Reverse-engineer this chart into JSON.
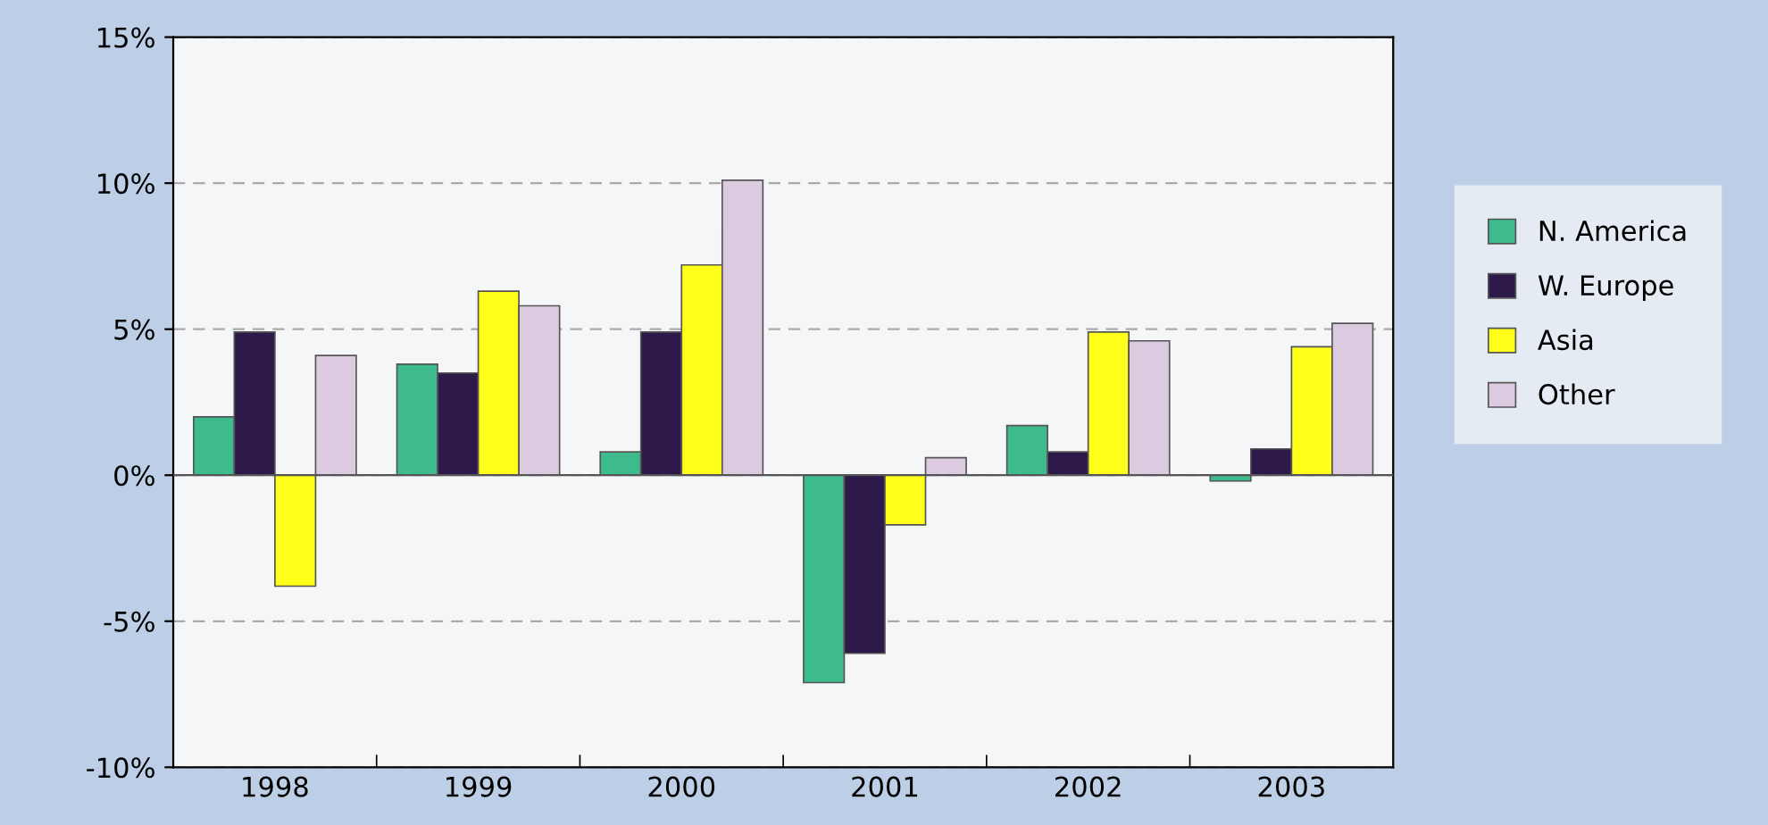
{
  "chart_data": {
    "type": "bar",
    "categories": [
      "1998",
      "1999",
      "2000",
      "2001",
      "2002",
      "2003"
    ],
    "series": [
      {
        "name": "N. America",
        "color": "#3dbb8c",
        "values": [
          2.0,
          3.8,
          0.8,
          -7.1,
          1.7,
          -0.2
        ]
      },
      {
        "name": "W. Europe",
        "color": "#2e1a4a",
        "values": [
          4.9,
          3.5,
          4.9,
          -6.1,
          0.8,
          0.9
        ]
      },
      {
        "name": "Asia",
        "color": "#ffff1a",
        "values": [
          -3.8,
          6.3,
          7.2,
          -1.7,
          4.9,
          4.4
        ]
      },
      {
        "name": "Other",
        "color": "#dccbe0",
        "values": [
          4.1,
          5.8,
          10.1,
          0.6,
          4.6,
          5.2
        ]
      }
    ],
    "ylim": [
      -10,
      15
    ],
    "yticks": [
      {
        "value": -10,
        "label": "-10%"
      },
      {
        "value": -5,
        "label": "-5%"
      },
      {
        "value": 0,
        "label": "0%"
      },
      {
        "value": 5,
        "label": "5%"
      },
      {
        "value": 10,
        "label": "10%"
      },
      {
        "value": 15,
        "label": "15%"
      }
    ],
    "grid": "y",
    "legend": "right"
  }
}
